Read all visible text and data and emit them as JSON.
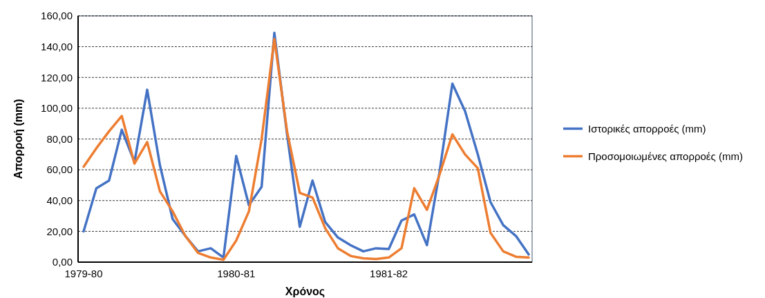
{
  "chart_data": {
    "type": "line",
    "xlabel": "Χρόνος",
    "ylabel": "Απορροή (mm)",
    "categories": [
      "1979-80",
      null,
      null,
      null,
      null,
      null,
      null,
      null,
      null,
      null,
      null,
      null,
      "1980-81",
      null,
      null,
      null,
      null,
      null,
      null,
      null,
      null,
      null,
      null,
      null,
      "1981-82",
      null,
      null,
      null,
      null,
      null,
      null,
      null,
      null,
      null,
      null,
      null
    ],
    "series": [
      {
        "name": "Ιστορικές απορροές (mm)",
        "color": "#4472c4",
        "values": [
          20,
          48,
          53,
          86,
          65,
          112,
          63,
          28,
          17,
          7,
          9,
          3,
          69,
          37,
          49,
          149,
          83,
          23,
          53,
          26,
          16,
          11,
          7,
          9,
          8.5,
          27,
          31,
          11,
          59,
          116,
          98,
          70,
          39,
          24,
          17,
          5
        ]
      },
      {
        "name": "Προσομοιωμένες απορροές (mm)",
        "color": "#ed7d31",
        "values": [
          62,
          74,
          85,
          95,
          64,
          78,
          46,
          33,
          17,
          6,
          3,
          1.5,
          14,
          33,
          80,
          145,
          85,
          45,
          42,
          22,
          9,
          4,
          2.5,
          2,
          3,
          9,
          48,
          34,
          57,
          83,
          70,
          61,
          19,
          7,
          3.5,
          3
        ]
      }
    ],
    "ylim": [
      0,
      160
    ],
    "yticks": [
      {
        "value": 0,
        "label": "0,00"
      },
      {
        "value": 20,
        "label": "20,00"
      },
      {
        "value": 40,
        "label": "40,00"
      },
      {
        "value": 60,
        "label": "60,00"
      },
      {
        "value": 80,
        "label": "80,00"
      },
      {
        "value": 100,
        "label": "100,00"
      },
      {
        "value": 120,
        "label": "120,00"
      },
      {
        "value": 140,
        "label": "140,00"
      },
      {
        "value": 160,
        "label": "160,00"
      }
    ],
    "grid": "y",
    "legend": "right",
    "marker": "none",
    "line_style": "solid"
  }
}
